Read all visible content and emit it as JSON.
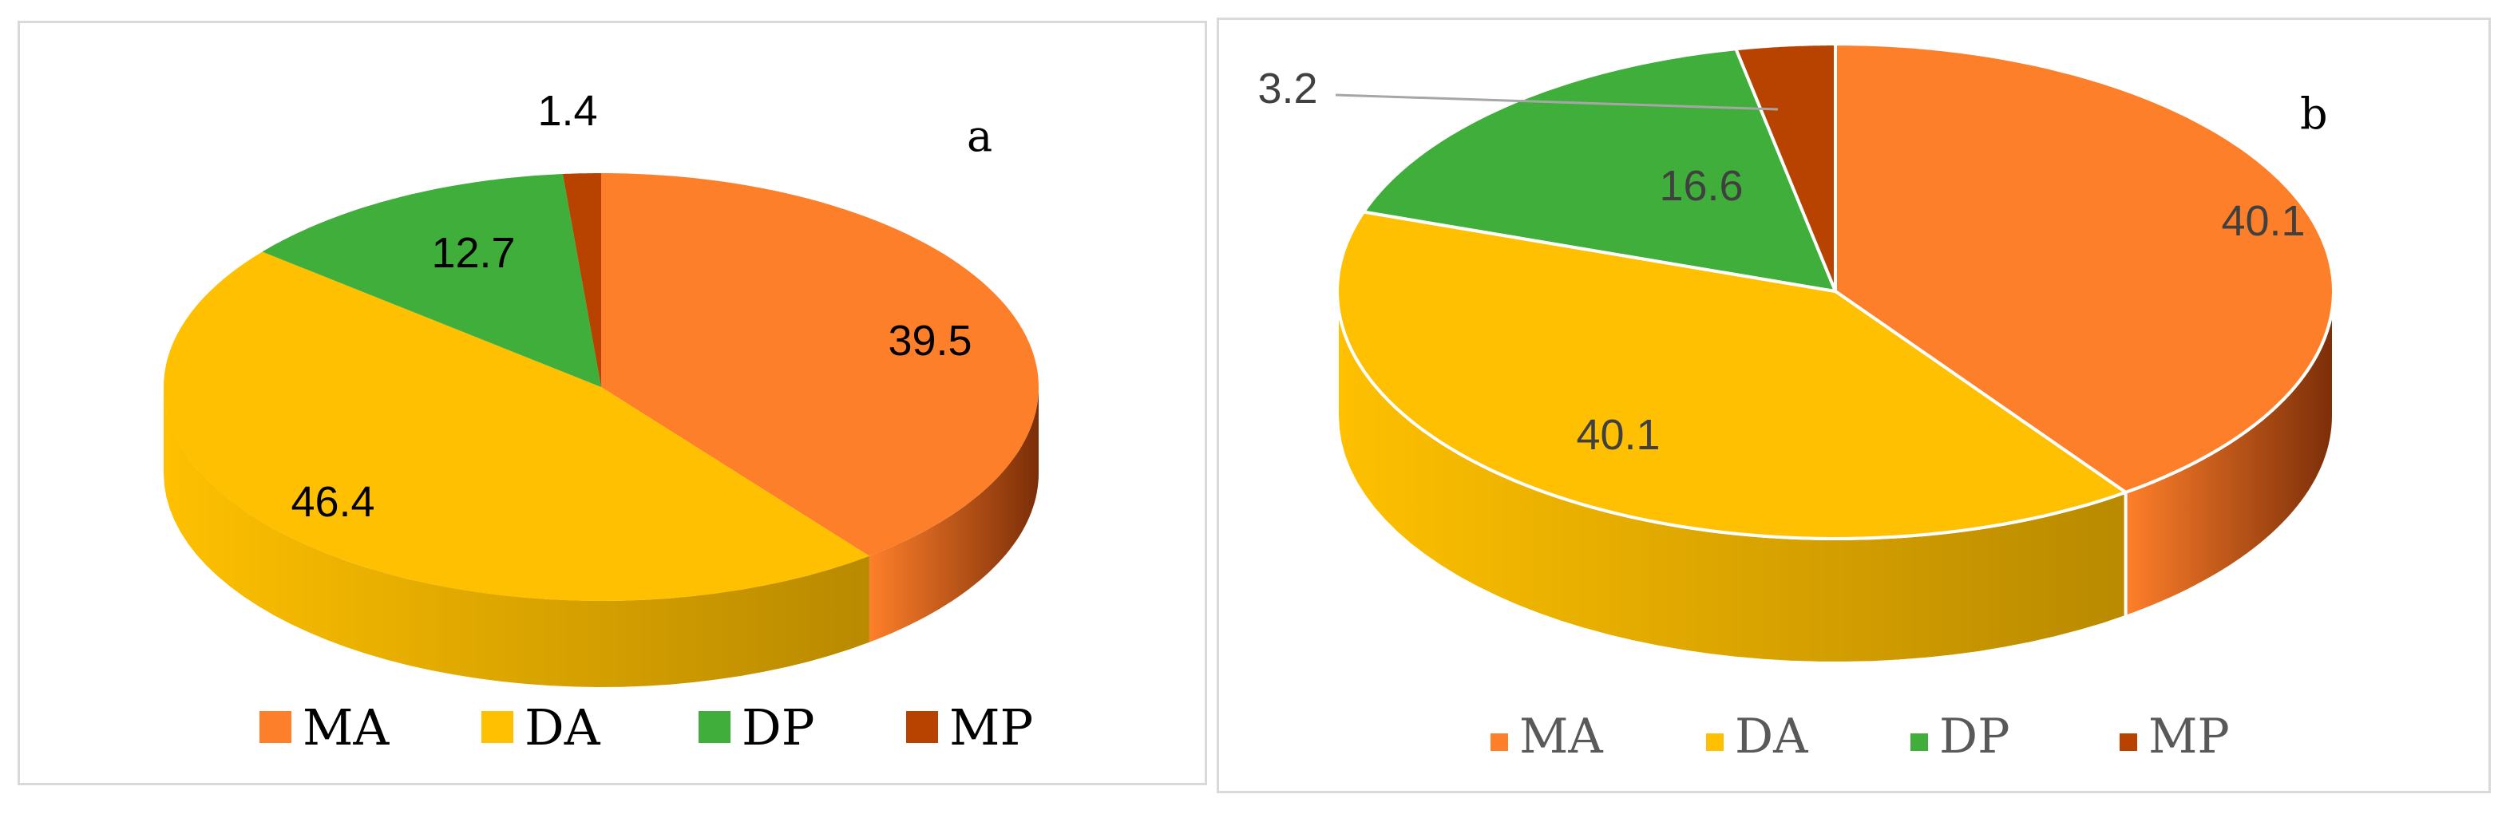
{
  "chart_data": [
    {
      "type": "pie",
      "panel_label": "a",
      "categories": [
        "MA",
        "DA",
        "DP",
        "MP"
      ],
      "values": [
        39.5,
        46.4,
        12.7,
        1.4
      ],
      "data_labels": [
        "39.5",
        "46.4",
        "12.7",
        "1.4"
      ],
      "legend": {
        "placement": "bottom",
        "entries": [
          "MA",
          "DA",
          "DP",
          "MP"
        ]
      },
      "three_d": true
    },
    {
      "type": "pie",
      "panel_label": "b",
      "categories": [
        "MA",
        "DA",
        "DP",
        "MP"
      ],
      "values": [
        40.1,
        40.1,
        16.6,
        3.2
      ],
      "data_labels": [
        "40.1",
        "40.1",
        "16.6",
        "3.2"
      ],
      "legend": {
        "placement": "bottom",
        "entries": [
          "MA",
          "DA",
          "DP",
          "MP"
        ]
      },
      "three_d": true
    }
  ],
  "colors": {
    "MA": "#fe7f2a",
    "DA": "#fec000",
    "DP": "#3fae3a",
    "MP": "#b84300"
  },
  "side_colors": {
    "MA": "#7b2e08",
    "DA": "#b98a00",
    "DP": "#1f6b1c",
    "MP": "#5a2000"
  }
}
